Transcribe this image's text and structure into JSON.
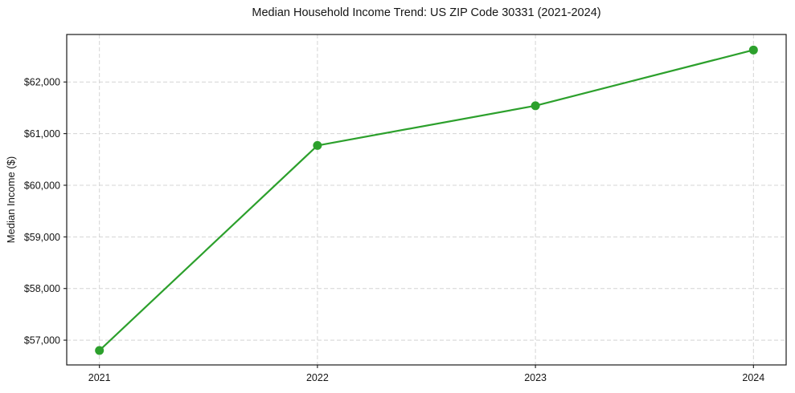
{
  "chart_data": {
    "type": "line",
    "title": "Median Household Income Trend: US ZIP Code 30331 (2021-2024)",
    "xlabel": "",
    "ylabel": "Median Income ($)",
    "categories": [
      "2021",
      "2022",
      "2023",
      "2024"
    ],
    "values": [
      56800,
      60770,
      61540,
      62620
    ],
    "yticks": {
      "values": [
        57000,
        58000,
        59000,
        60000,
        61000,
        62000
      ],
      "labels": [
        "$57,000",
        "$58,000",
        "$59,000",
        "$60,000",
        "$61,000",
        "$62,000"
      ]
    },
    "ylim": [
      56520,
      62920
    ],
    "xlim": [
      -0.15,
      3.15
    ],
    "grid": true,
    "grid_style": "dashed",
    "legend": null,
    "colors": {
      "series": "#2ca02c",
      "grid": "#d4d4d4",
      "spine": "#1a1a1a",
      "text": "#151515"
    },
    "marker": "circle"
  }
}
